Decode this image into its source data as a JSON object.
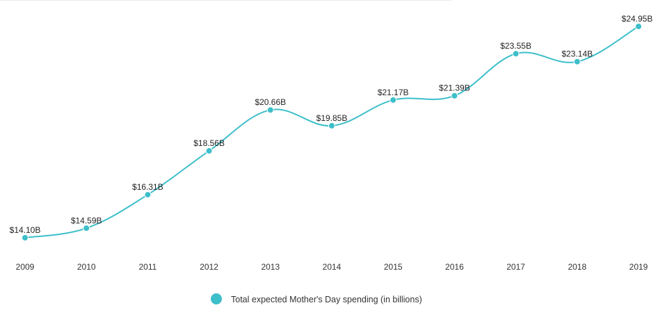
{
  "chart_data": {
    "type": "line",
    "categories": [
      "2009",
      "2010",
      "2011",
      "2012",
      "2013",
      "2014",
      "2015",
      "2016",
      "2017",
      "2018",
      "2019"
    ],
    "series": [
      {
        "name": "Total expected Mother's Day spending (in billions)",
        "values": [
          14.1,
          14.59,
          16.31,
          18.56,
          20.66,
          19.85,
          21.17,
          21.39,
          23.55,
          23.14,
          24.95
        ],
        "labels": [
          "$14.10B",
          "$14.59B",
          "$16.31B",
          "$18.56B",
          "$20.66B",
          "$19.85B",
          "$21.17B",
          "$21.39B",
          "$23.55B",
          "$23.14B",
          "$24.95B"
        ]
      }
    ],
    "title": "",
    "xlabel": "",
    "ylabel": "",
    "ylim": [
      14.1,
      24.95
    ],
    "grid": false,
    "legend_position": "bottom-center"
  },
  "colors": {
    "series": "#3dbfca",
    "text": "#222222"
  }
}
